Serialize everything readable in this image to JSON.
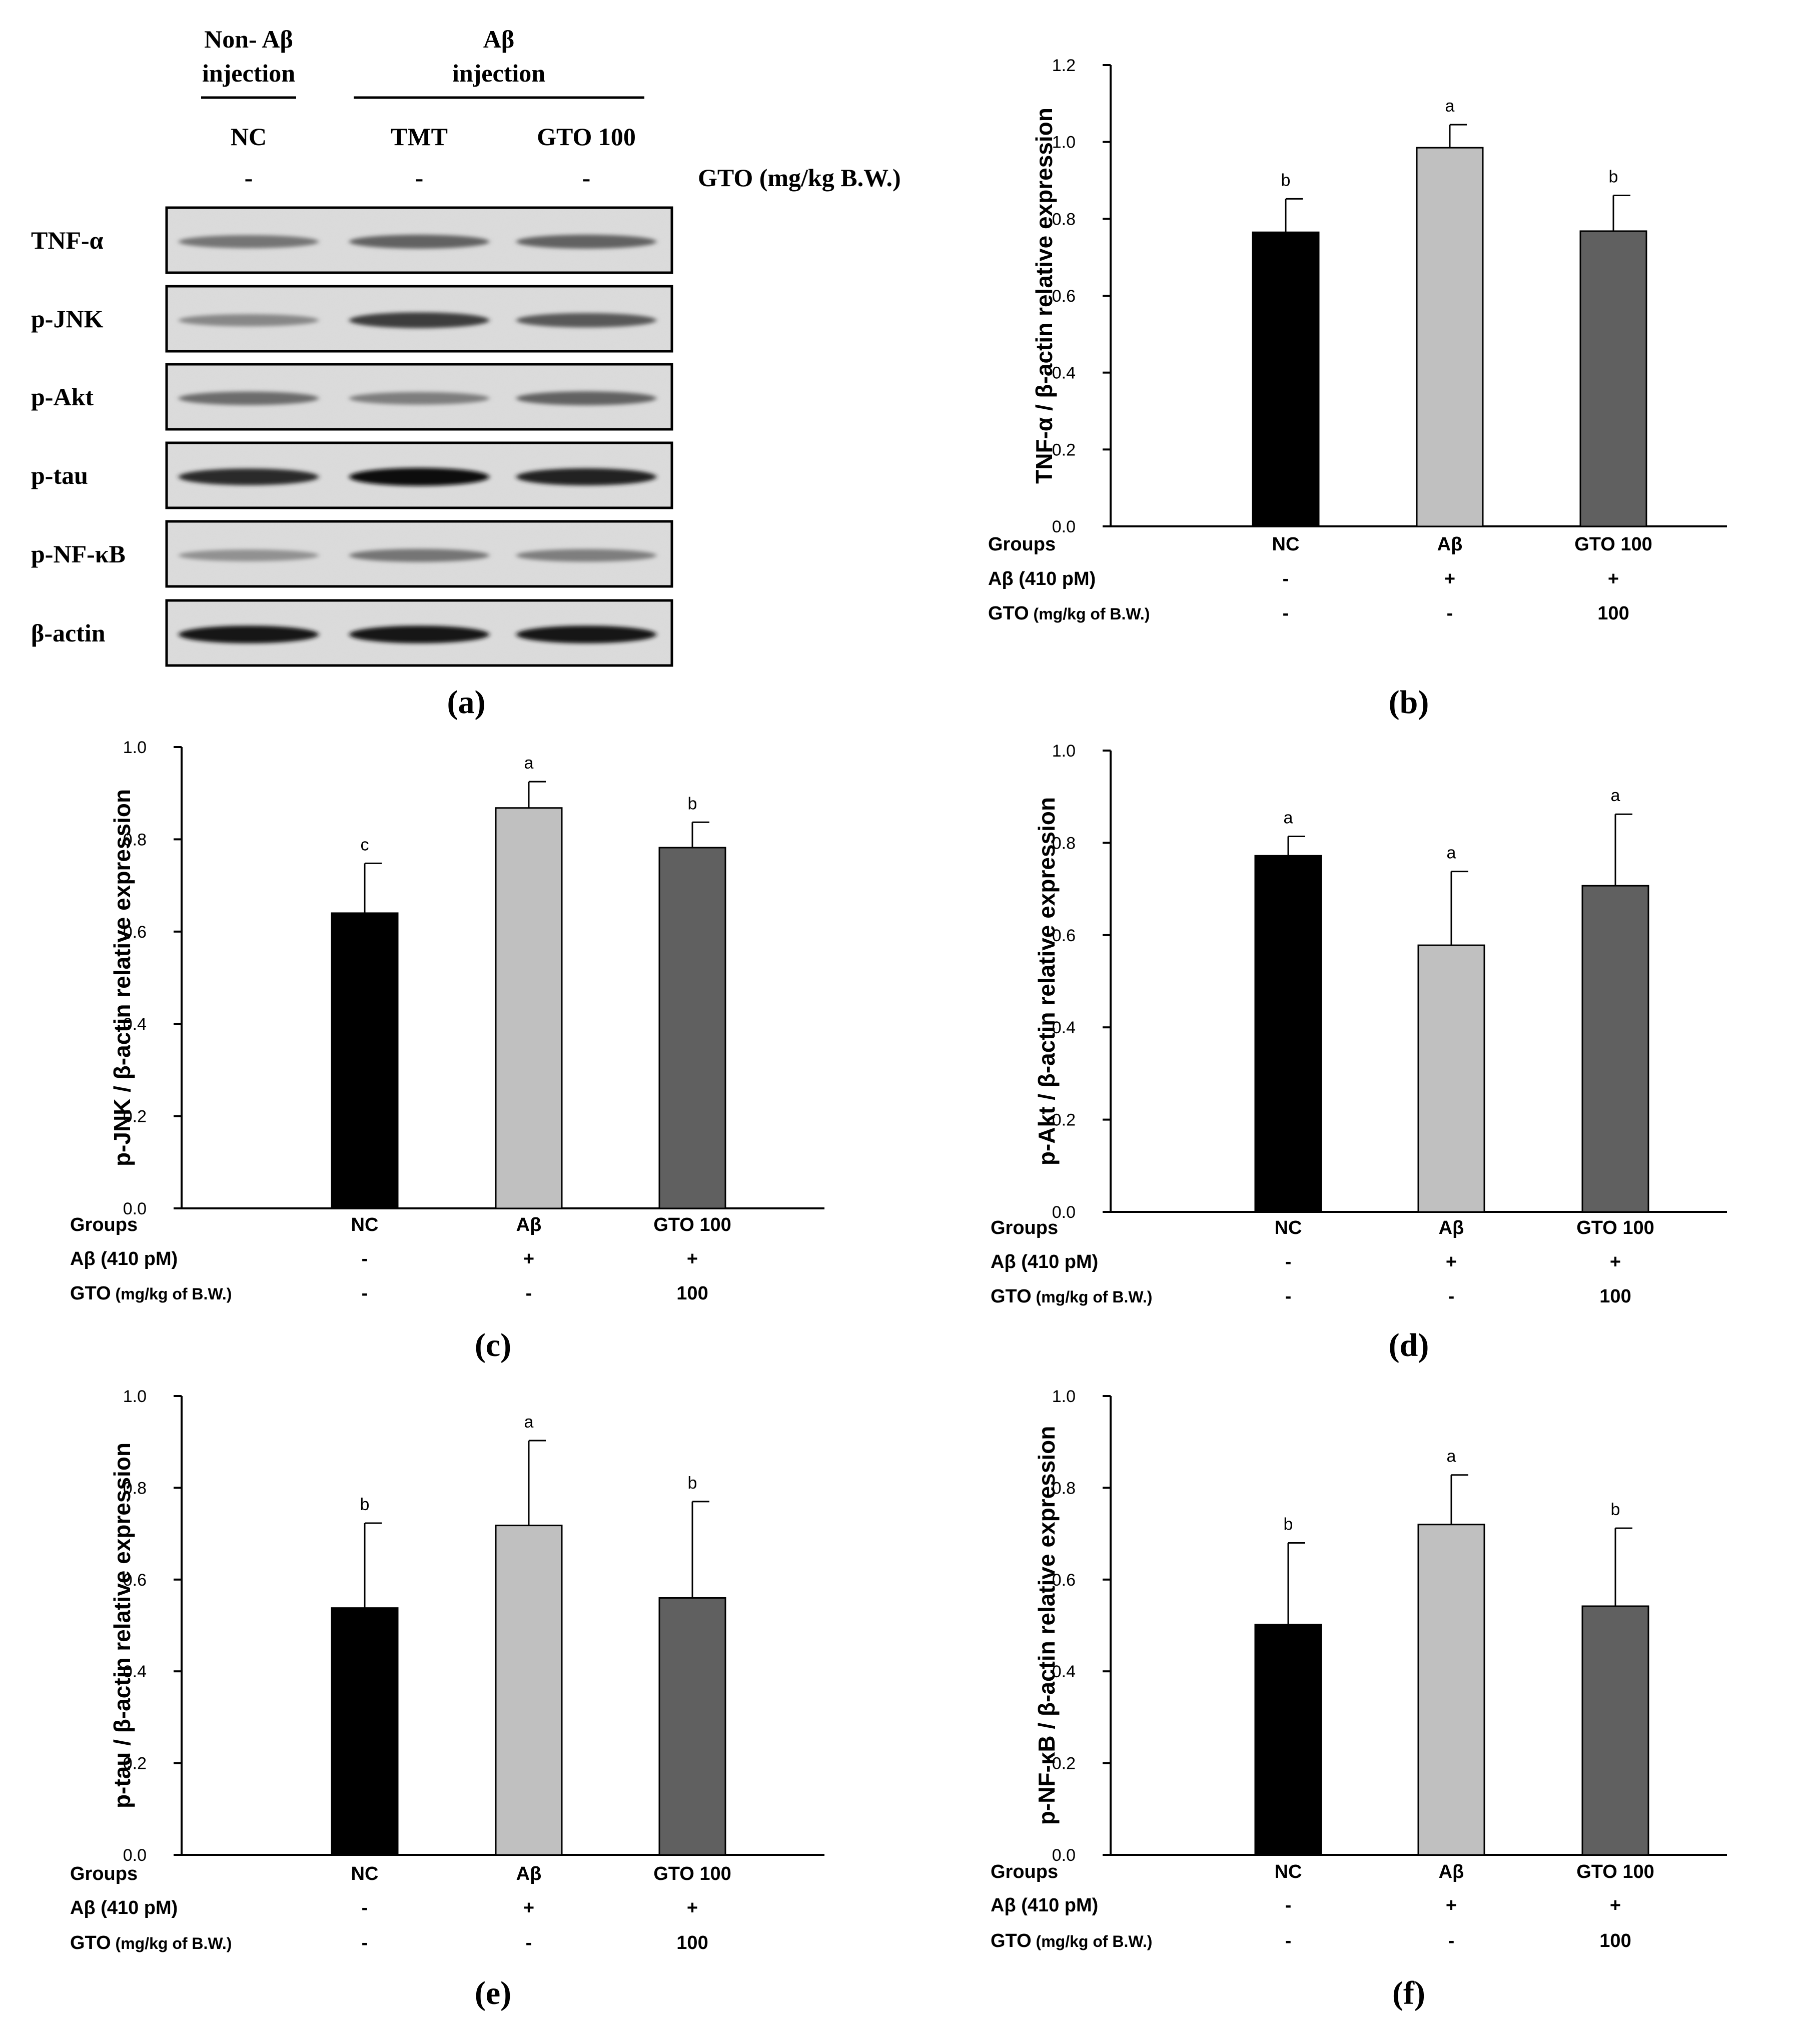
{
  "blot": {
    "header_left_line1": "Non- Aβ",
    "header_left_line2": "injection",
    "header_right_line1": "Aβ",
    "header_right_line2": "injection",
    "lanes": [
      "NC",
      "TMT",
      "GTO 100"
    ],
    "dose_marks": [
      "-",
      "-",
      "-"
    ],
    "dose_label": "GTO (mg/kg B.W.)",
    "proteins": [
      "TNF-α",
      "p-JNK",
      "p-Akt",
      "p-tau",
      "p-NF-κB",
      "β-actin"
    ],
    "band_intensity": [
      [
        0.45,
        0.55,
        0.55
      ],
      [
        0.35,
        0.75,
        0.6
      ],
      [
        0.5,
        0.4,
        0.55
      ],
      [
        0.85,
        1.0,
        0.9
      ],
      [
        0.3,
        0.45,
        0.4
      ],
      [
        0.95,
        0.95,
        0.95
      ]
    ],
    "panel_label": "(a)"
  },
  "chart_data": [
    {
      "type": "bar",
      "panel_label": "(b)",
      "ylabel": "TNF-α / β-actin relative expression",
      "categories": [
        "NC",
        "Aβ",
        "GTO 100"
      ],
      "values": [
        0.765,
        0.985,
        0.768
      ],
      "errors": [
        0.087,
        0.06,
        0.093
      ],
      "letters": [
        "b",
        "a",
        "b"
      ],
      "ylim": [
        0,
        1.2
      ],
      "yticks": [
        "0.0",
        "0.2",
        "0.4",
        "0.6",
        "0.8",
        "1.0",
        "1.2"
      ],
      "bar_colors": [
        "#000000",
        "#c0c0c0",
        "#606060"
      ],
      "rows": [
        {
          "label": "Groups",
          "values": [
            "NC",
            "Aβ",
            "GTO 100"
          ]
        },
        {
          "label": "Aβ (410 pM)",
          "values": [
            "-",
            "+",
            "+"
          ]
        },
        {
          "label": "GTO",
          "label_small": "(mg/kg of B.W.)",
          "values": [
            "-",
            "-",
            "100"
          ]
        }
      ]
    },
    {
      "type": "bar",
      "panel_label": "(c)",
      "ylabel": "p-JNK / β-actin relative expression",
      "categories": [
        "NC",
        "Aβ",
        "GTO 100"
      ],
      "values": [
        0.64,
        0.868,
        0.782
      ],
      "errors": [
        0.108,
        0.057,
        0.055
      ],
      "letters": [
        "c",
        "a",
        "b"
      ],
      "ylim": [
        0,
        1.0
      ],
      "yticks": [
        "0.0",
        "0.2",
        "0.4",
        "0.6",
        "0.8",
        "1.0"
      ],
      "bar_colors": [
        "#000000",
        "#c0c0c0",
        "#606060"
      ],
      "rows": [
        {
          "label": "Groups",
          "values": [
            "NC",
            "Aβ",
            "GTO 100"
          ]
        },
        {
          "label": "Aβ (410 pM)",
          "values": [
            "-",
            "+",
            "+"
          ]
        },
        {
          "label": "GTO",
          "label_small": "(mg/kg of B.W.)",
          "values": [
            "-",
            "-",
            "100"
          ]
        }
      ]
    },
    {
      "type": "bar",
      "panel_label": "(d)",
      "ylabel": "p-Akt / β-actin relative expression",
      "categories": [
        "NC",
        "Aβ",
        "GTO 100"
      ],
      "values": [
        0.772,
        0.578,
        0.707
      ],
      "errors": [
        0.042,
        0.16,
        0.155
      ],
      "letters": [
        "a",
        "a",
        "a"
      ],
      "ylim": [
        0,
        1.0
      ],
      "yticks": [
        "0.0",
        "0.2",
        "0.4",
        "0.6",
        "0.8",
        "1.0"
      ],
      "bar_colors": [
        "#000000",
        "#c0c0c0",
        "#606060"
      ],
      "rows": [
        {
          "label": "Groups",
          "values": [
            "NC",
            "Aβ",
            "GTO 100"
          ]
        },
        {
          "label": "Aβ (410 pM)",
          "values": [
            "-",
            "+",
            "+"
          ]
        },
        {
          "label": "GTO",
          "label_small": "(mg/kg of B.W.)",
          "values": [
            "-",
            "-",
            "100"
          ]
        }
      ]
    },
    {
      "type": "bar",
      "panel_label": "(e)",
      "ylabel": "p-tau / β-actin relative expression",
      "categories": [
        "NC",
        "Aβ",
        "GTO 100"
      ],
      "values": [
        0.538,
        0.718,
        0.56
      ],
      "errors": [
        0.185,
        0.185,
        0.21
      ],
      "letters": [
        "b",
        "a",
        "b"
      ],
      "ylim": [
        0,
        1.0
      ],
      "yticks": [
        "0.0",
        "0.2",
        "0.4",
        "0.6",
        "0.8",
        "1.0"
      ],
      "bar_colors": [
        "#000000",
        "#c0c0c0",
        "#606060"
      ],
      "rows": [
        {
          "label": "Groups",
          "values": [
            "NC",
            "Aβ",
            "GTO 100"
          ]
        },
        {
          "label": "Aβ (410 pM)",
          "values": [
            "-",
            "+",
            "+"
          ]
        },
        {
          "label": "GTO",
          "label_small": "(mg/kg of B.W.)",
          "values": [
            "-",
            "-",
            "100"
          ]
        }
      ]
    },
    {
      "type": "bar",
      "panel_label": "(f)",
      "ylabel": "p-NF-κB / β-actin relative expression",
      "categories": [
        "NC",
        "Aβ",
        "GTO 100"
      ],
      "values": [
        0.502,
        0.72,
        0.542
      ],
      "errors": [
        0.178,
        0.108,
        0.17
      ],
      "letters": [
        "b",
        "a",
        "b"
      ],
      "ylim": [
        0,
        1.0
      ],
      "yticks": [
        "0.0",
        "0.2",
        "0.4",
        "0.6",
        "0.8",
        "1.0"
      ],
      "bar_colors": [
        "#000000",
        "#c0c0c0",
        "#606060"
      ],
      "rows": [
        {
          "label": "Groups",
          "values": [
            "NC",
            "Aβ",
            "GTO 100"
          ]
        },
        {
          "label": "Aβ (410 pM)",
          "values": [
            "-",
            "+",
            "+"
          ]
        },
        {
          "label": "GTO",
          "label_small": "(mg/kg of B.W.)",
          "values": [
            "-",
            "-",
            "100"
          ]
        }
      ]
    }
  ]
}
